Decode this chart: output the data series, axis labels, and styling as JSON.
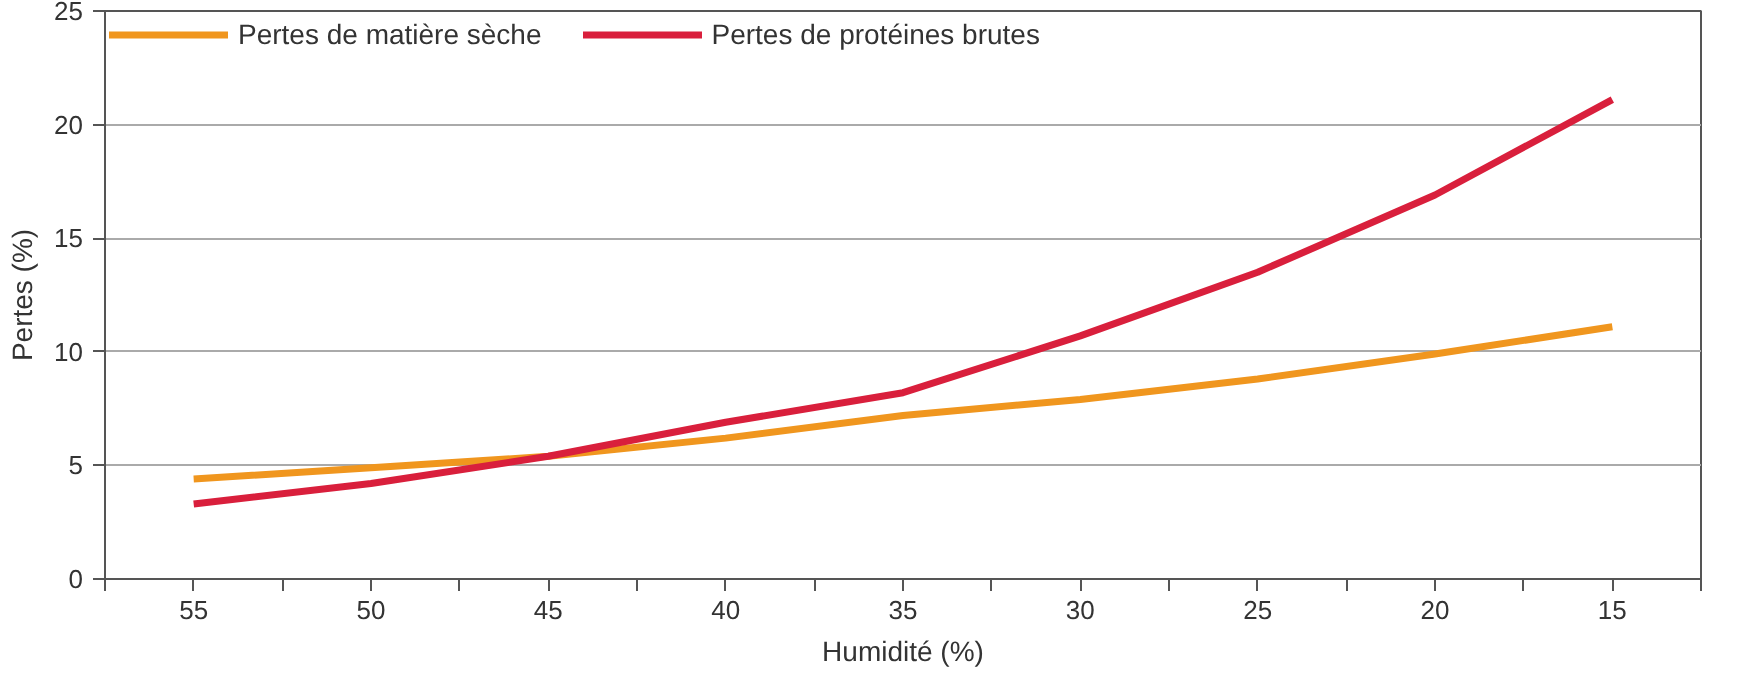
{
  "chart_data": {
    "type": "line",
    "xlabel": "Humidité (%)",
    "ylabel": "Pertes (%)",
    "x": [
      55,
      50,
      45,
      40,
      35,
      30,
      25,
      20,
      15
    ],
    "series": [
      {
        "name": "Pertes de matière sèche",
        "color": "#f0961e",
        "values": [
          4.4,
          4.9,
          5.4,
          6.2,
          7.2,
          7.9,
          8.8,
          9.9,
          11.1
        ]
      },
      {
        "name": "Pertes de protéines brutes",
        "color": "#d91f3c",
        "values": [
          3.3,
          4.2,
          5.4,
          6.9,
          8.2,
          10.7,
          13.5,
          16.9,
          21.1
        ]
      }
    ],
    "xlim": [
      57.5,
      12.5
    ],
    "xticks": [
      {
        "value": 57.5,
        "label": null
      },
      55,
      {
        "value": 52.5,
        "label": null
      },
      50,
      {
        "value": 47.5,
        "label": null
      },
      45,
      {
        "value": 42.5,
        "label": null
      },
      40,
      {
        "value": 37.5,
        "label": null
      },
      35,
      {
        "value": 32.5,
        "label": null
      },
      30,
      {
        "value": 27.5,
        "label": null
      },
      25,
      {
        "value": 22.5,
        "label": null
      },
      20,
      {
        "value": 17.5,
        "label": null
      },
      15,
      {
        "value": 12.5,
        "label": null
      }
    ],
    "ylim": [
      0,
      25
    ],
    "yticks": [
      0,
      5,
      10,
      15,
      20,
      25
    ],
    "grid": "y",
    "legend": "top",
    "line_style": "solid",
    "marker": "none"
  }
}
